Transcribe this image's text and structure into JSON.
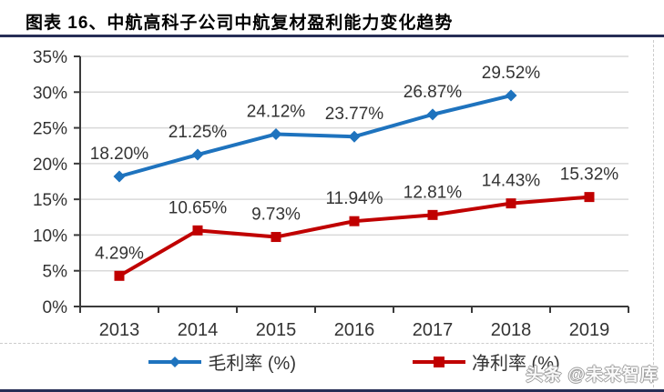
{
  "page": {
    "title": "图表 16、中航高科子公司中航复材盈利能力变化趋势",
    "rule_color": "#272E56",
    "watermark": "头条 @未来智库"
  },
  "chart_data": {
    "type": "line",
    "title": "",
    "xlabel": "",
    "ylabel": "",
    "categories": [
      "2013",
      "2014",
      "2015",
      "2016",
      "2017",
      "2018",
      "2019"
    ],
    "series": [
      {
        "name": "毛利率 (%)",
        "color": "#1E73BE",
        "marker": "diamond",
        "values": [
          18.2,
          21.25,
          24.12,
          23.77,
          26.87,
          29.52,
          null
        ],
        "labels": [
          "18.20%",
          "21.25%",
          "24.12%",
          "23.77%",
          "26.87%",
          "29.52%",
          null
        ]
      },
      {
        "name": "净利率 (%)",
        "color": "#C00000",
        "marker": "square",
        "values": [
          4.29,
          10.65,
          9.73,
          11.94,
          12.81,
          14.43,
          15.32
        ],
        "labels": [
          "4.29%",
          "10.65%",
          "9.73%",
          "11.94%",
          "12.81%",
          "14.43%",
          "15.32%"
        ]
      }
    ],
    "ylim": [
      0,
      35
    ],
    "yticks": [
      0,
      5,
      10,
      15,
      20,
      25,
      30,
      35
    ],
    "ytick_labels": [
      "0%",
      "5%",
      "10%",
      "15%",
      "20%",
      "25%",
      "30%",
      "35%"
    ],
    "grid": true,
    "legend_position": "bottom",
    "gridline_color": "#D9D9D9",
    "axis_color": "#3A3A3A",
    "label_color": "#333333"
  }
}
